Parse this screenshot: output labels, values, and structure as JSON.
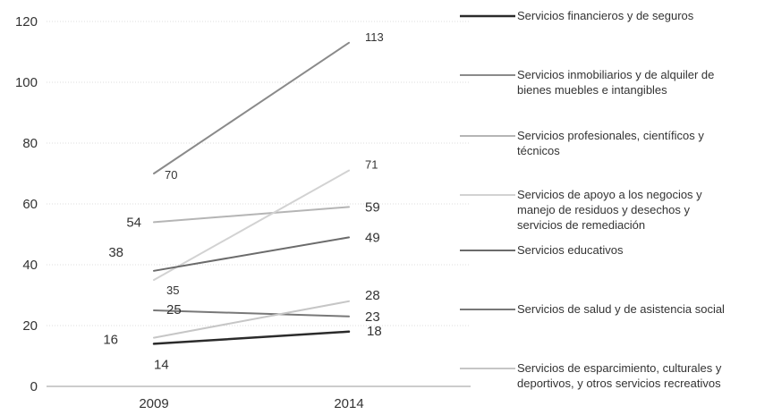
{
  "chart_data": {
    "type": "line",
    "title": "",
    "xlabel": "",
    "ylabel": "",
    "categories": [
      "2009",
      "2014"
    ],
    "ylim": [
      0,
      120
    ],
    "yticks": [
      "0",
      "20",
      "40",
      "60",
      "80",
      "100",
      "120"
    ],
    "grid": true,
    "legend_position": "right",
    "series": [
      {
        "name": "Servicios financieros y de seguros",
        "values": [
          14,
          18
        ],
        "labels": [
          "14",
          "18"
        ],
        "color": "#2b2b2b"
      },
      {
        "name": "Servicios inmobiliarios y de alquiler de bienes muebles e intangibles",
        "values": [
          70,
          113
        ],
        "labels": [
          "70",
          "113"
        ],
        "color": "#8a8a8a"
      },
      {
        "name": "Servicios profesionales, científicos y técnicos",
        "values": [
          54,
          59
        ],
        "labels": [
          "54",
          "59"
        ],
        "color": "#b5b5b5"
      },
      {
        "name": "Servicios de apoyo a los negocios y manejo de residuos y desechos y servicios de remediación",
        "values": [
          35,
          71
        ],
        "labels": [
          "35",
          "71"
        ],
        "color": "#d2d2d2"
      },
      {
        "name": "Servicios educativos",
        "values": [
          38,
          49
        ],
        "labels": [
          "38",
          "49"
        ],
        "color": "#6b6b6b"
      },
      {
        "name": "Servicios de salud y de asistencia social",
        "values": [
          25,
          23
        ],
        "labels": [
          "25",
          "23"
        ],
        "color": "#787878"
      },
      {
        "name": "Servicios de esparcimiento, culturales y deportivos, y otros servicios recreativos",
        "values": [
          16,
          28
        ],
        "labels": [
          "16",
          "28"
        ],
        "color": "#c6c6c6"
      }
    ]
  }
}
